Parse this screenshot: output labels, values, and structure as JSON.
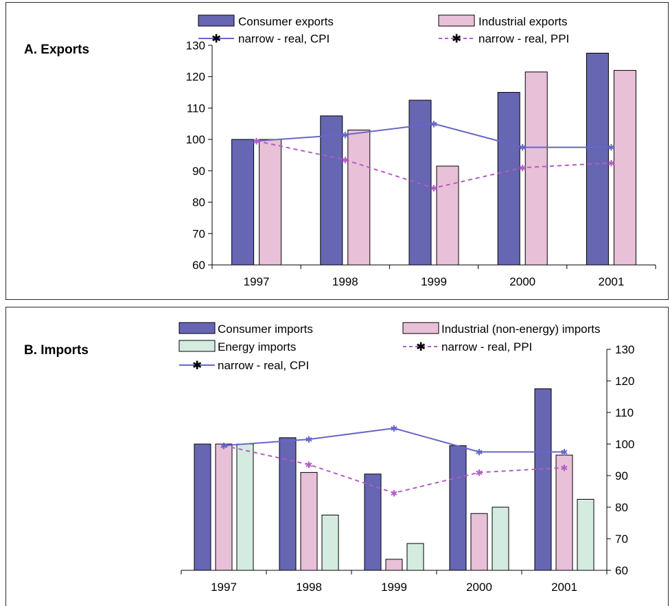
{
  "colors": {
    "consumer": "#6666b3",
    "industrial": "#e8c0d8",
    "energy": "#d4ece0",
    "cpi_line": "#6666c8",
    "ppi_line": "#b25cc8"
  },
  "panel_a": {
    "title": "A. Exports",
    "legend": {
      "consumer": "Consumer exports",
      "industrial": "Industrial exports",
      "cpi": "narrow - real, CPI",
      "ppi": "narrow - real, PPI"
    }
  },
  "panel_b": {
    "title": "B. Imports",
    "legend": {
      "consumer": "Consumer imports",
      "industrial": "Industrial (non-energy) imports",
      "energy": "Energy imports",
      "ppi": "narrow - real, PPI",
      "cpi": "narrow - real, CPI"
    }
  },
  "chart_data": [
    {
      "type": "bar",
      "title": "A. Exports",
      "categories": [
        "1997",
        "1998",
        "1999",
        "2000",
        "2001"
      ],
      "ylim": [
        60,
        130
      ],
      "yticks": [
        "60",
        "70",
        "80",
        "90",
        "100",
        "110",
        "120",
        "130"
      ],
      "series": [
        {
          "name": "Consumer exports",
          "kind": "bar",
          "values": [
            100,
            107.5,
            112.5,
            115,
            127.5
          ]
        },
        {
          "name": "Industrial exports",
          "kind": "bar",
          "values": [
            100,
            103,
            91.5,
            121.5,
            122
          ]
        },
        {
          "name": "narrow - real, CPI",
          "kind": "line",
          "values": [
            99.5,
            101.5,
            105,
            97.5,
            97.5
          ]
        },
        {
          "name": "narrow - real, PPI",
          "kind": "line",
          "values": [
            99.5,
            93.5,
            84.5,
            91,
            92.5
          ]
        }
      ],
      "grid": false,
      "legend_position": "top"
    },
    {
      "type": "bar",
      "title": "B. Imports",
      "categories": [
        "1997",
        "1998",
        "1999",
        "2000",
        "2001"
      ],
      "ylim": [
        60,
        130
      ],
      "yticks": [
        "60",
        "70",
        "80",
        "90",
        "100",
        "110",
        "120",
        "130"
      ],
      "yaxis_side": "right",
      "series": [
        {
          "name": "Consumer imports",
          "kind": "bar",
          "values": [
            100,
            102,
            90.5,
            99.5,
            117.5
          ]
        },
        {
          "name": "Industrial (non-energy) imports",
          "kind": "bar",
          "values": [
            100,
            91,
            63.5,
            78,
            96.5
          ]
        },
        {
          "name": "Energy imports",
          "kind": "bar",
          "values": [
            100,
            77.5,
            68.5,
            80,
            82.5
          ]
        },
        {
          "name": "narrow - real, PPI",
          "kind": "line",
          "values": [
            99.5,
            93.5,
            84.5,
            91,
            92.5
          ]
        },
        {
          "name": "narrow - real, CPI",
          "kind": "line",
          "values": [
            99.5,
            101.5,
            105,
            97.5,
            97.5
          ]
        }
      ],
      "grid": false,
      "legend_position": "top"
    }
  ]
}
